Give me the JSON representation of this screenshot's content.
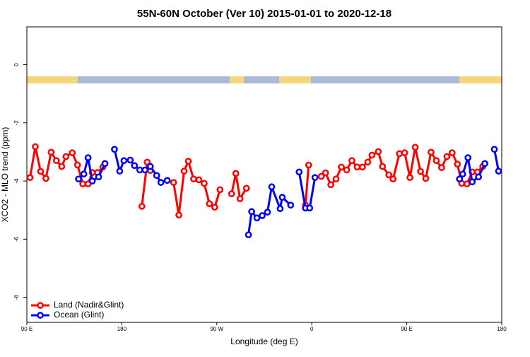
{
  "chart_data": {
    "type": "line",
    "title": "55N-60N October (Ver 10)   2015-01-01 to 2020-12-18",
    "x_label": "Longitude (deg E)",
    "y_label": "XCO2 - MLO trend (ppm)",
    "xlim": [
      90,
      540
    ],
    "xticks": [
      {
        "value": 90,
        "label": "90 E"
      },
      {
        "value": 180,
        "label": "180"
      },
      {
        "value": 270,
        "label": "90 W"
      },
      {
        "value": 360,
        "label": "0"
      },
      {
        "value": 450,
        "label": "90 E"
      },
      {
        "value": 540,
        "label": "180"
      }
    ],
    "ylim": [
      -8.86,
      1.3
    ],
    "yticks": [
      0,
      -2,
      -4,
      -6,
      -8
    ],
    "legend": "bottomleft",
    "series": [
      {
        "name": "Land (Nadir&Glint)",
        "color": "#ff0000",
        "x": [
          93,
          98,
          103,
          108,
          113,
          118,
          123,
          127,
          133,
          138,
          143,
          148,
          152,
          157,
          162,
          null,
          199,
          204,
          207,
          null,
          229,
          234,
          239,
          243,
          248,
          253,
          258,
          263,
          268,
          273,
          null,
          284,
          288,
          292,
          298,
          null,
          354,
          357,
          null,
          369,
          373,
          378,
          383,
          388,
          393,
          398,
          403,
          408,
          413,
          417,
          423,
          427,
          433,
          437,
          443,
          448,
          453,
          458,
          463,
          468,
          473,
          478,
          483,
          488,
          493,
          498,
          502,
          507,
          512,
          517,
          522
        ],
        "values": [
          -3.88,
          -2.82,
          -3.67,
          -3.91,
          -3.01,
          -3.3,
          -3.5,
          -3.16,
          -3.03,
          -3.45,
          -4.1,
          -4.1,
          -3.71,
          -3.71,
          -3.52,
          null,
          -4.87,
          -3.35,
          -3.64,
          null,
          -4.05,
          -5.17,
          -3.66,
          -3.32,
          -3.93,
          -3.96,
          -4.08,
          -4.78,
          -4.9,
          -4.3,
          null,
          -4.44,
          -3.74,
          -4.61,
          -4.25,
          null,
          -4.83,
          -3.45,
          null,
          -3.84,
          -3.72,
          -4.13,
          -3.93,
          -3.52,
          -3.62,
          -3.3,
          -3.52,
          -3.52,
          -3.35,
          -3.11,
          -2.99,
          -3.5,
          -3.79,
          -3.93,
          -3.06,
          -3.03,
          -3.88,
          -2.84,
          -3.67,
          -3.91,
          -3.01,
          -3.3,
          -3.54,
          -3.16,
          -3.03,
          -3.42,
          -4.08,
          -4.1,
          -3.69,
          -3.69,
          -3.5
        ]
      },
      {
        "name": "Ocean (Glint)",
        "color": "#0000ff",
        "x": [
          139,
          144,
          148,
          152,
          158,
          164,
          null,
          173,
          178,
          182,
          188,
          192,
          197,
          202,
          207,
          213,
          217,
          223,
          null,
          300,
          303,
          308,
          313,
          318,
          322,
          330,
          332,
          340,
          null,
          348,
          354,
          358,
          363,
          null,
          500,
          503,
          508,
          512,
          518,
          524,
          null,
          533,
          537
        ],
        "values": [
          -3.93,
          -3.76,
          -3.2,
          -4.0,
          -3.86,
          -3.4,
          null,
          -2.91,
          -3.66,
          -3.3,
          -3.28,
          -3.47,
          -3.62,
          -3.62,
          -3.5,
          -3.81,
          -4.05,
          -3.98,
          null,
          -5.85,
          -5.05,
          -5.27,
          -5.19,
          -5.07,
          -4.2,
          -4.95,
          -4.56,
          -4.83,
          null,
          -3.69,
          -4.93,
          -4.93,
          -3.88,
          null,
          -3.93,
          -3.76,
          -3.2,
          -4.03,
          -3.86,
          -3.4,
          null,
          -2.91,
          -3.66
        ]
      }
    ]
  }
}
